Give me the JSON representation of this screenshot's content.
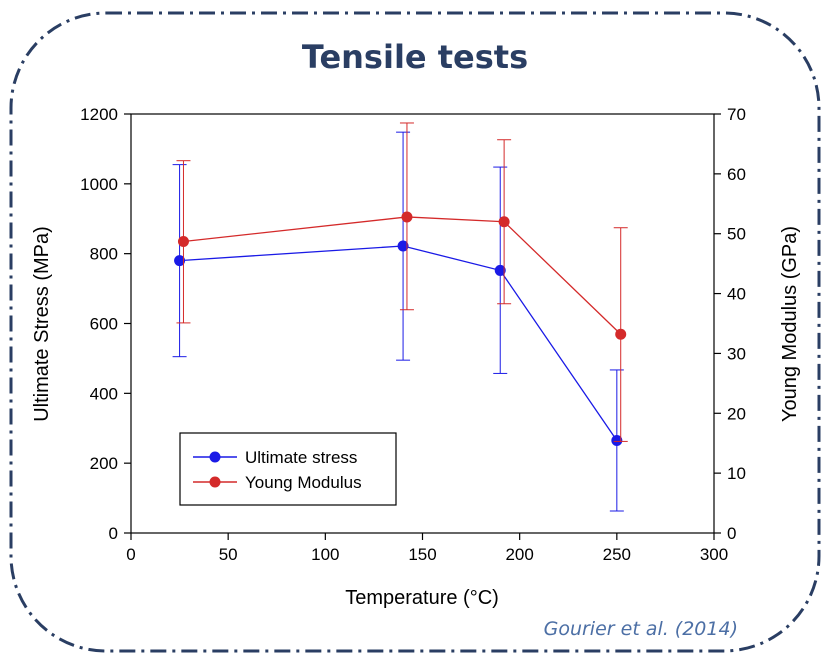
{
  "slide": {
    "title": "Tensile tests",
    "citation": "Gourier et al. (2014)"
  },
  "colors": {
    "frame": "#2a3e63",
    "title": "#2a3e63",
    "citation": "#4c6fa5"
  },
  "chart_data": {
    "type": "line",
    "title": "",
    "xlabel": "Temperature (°C)",
    "ylabel": "Ultimate Stress (MPa)",
    "y2label": "Young Modulus (GPa)",
    "xlim": [
      0,
      300
    ],
    "ylim": [
      0,
      1200
    ],
    "y2lim": [
      0,
      70
    ],
    "xticks": [
      0,
      50,
      100,
      150,
      200,
      250,
      300
    ],
    "yticks": [
      0,
      200,
      400,
      600,
      800,
      1000,
      1200
    ],
    "y2ticks": [
      0,
      10,
      20,
      30,
      40,
      50,
      60,
      70
    ],
    "grid": false,
    "legend_position": "bottom-left",
    "series": [
      {
        "name": "Ultimate stress",
        "axis": "left",
        "color": "#1a1ae6",
        "x": [
          25,
          140,
          190,
          250
        ],
        "y": [
          780,
          822,
          752,
          265
        ],
        "err_low": [
          505,
          495,
          457,
          63
        ],
        "err_high": [
          1055,
          1148,
          1048,
          467
        ]
      },
      {
        "name": "Young Modulus",
        "axis": "right",
        "color": "#d42a2a",
        "x": [
          27,
          142,
          192,
          252
        ],
        "y": [
          48.7,
          52.8,
          52.0,
          33.2
        ],
        "err_low": [
          35.1,
          37.3,
          38.3,
          15.3
        ],
        "err_high": [
          62.2,
          68.5,
          65.7,
          51.0
        ]
      }
    ]
  }
}
